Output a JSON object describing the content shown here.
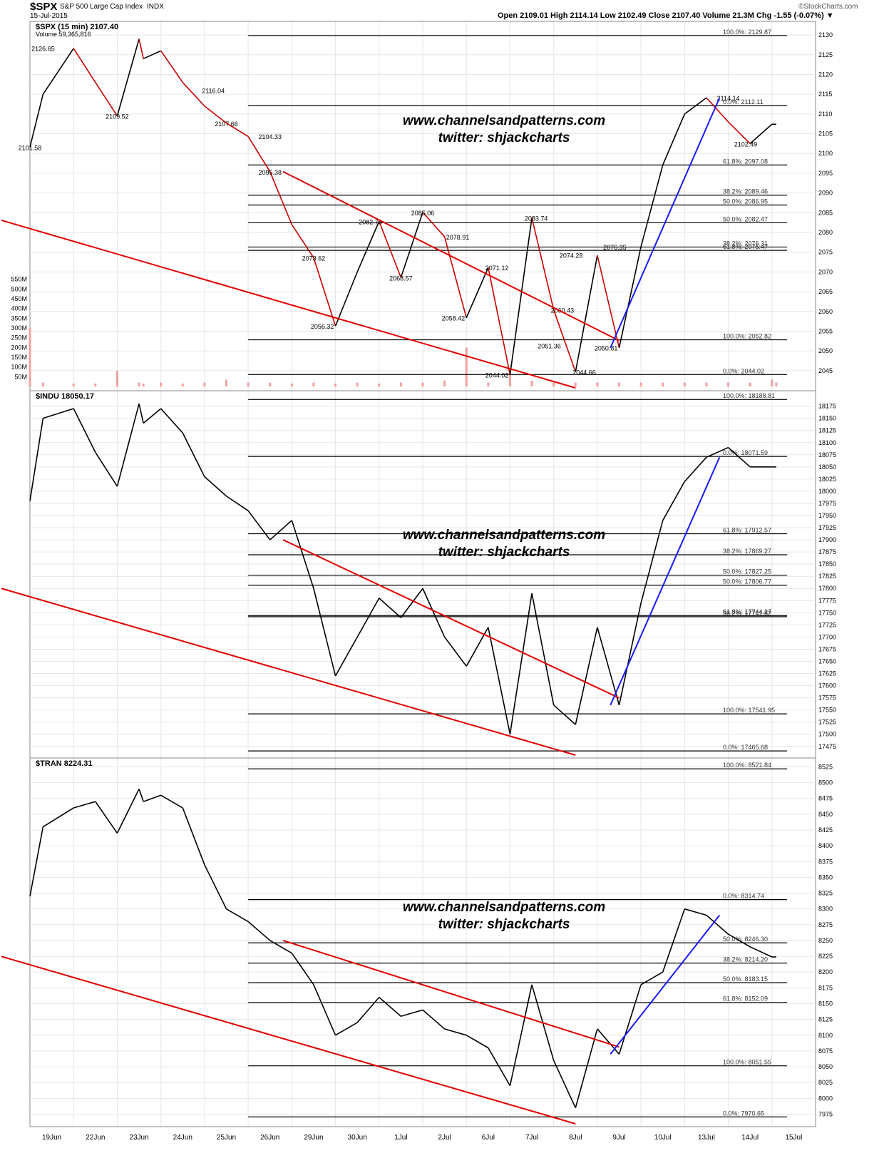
{
  "header": {
    "symbol": "$SPX",
    "name": "S&P 500 Large Cap Index",
    "exchange": "INDX",
    "date": "15-Jul-2015",
    "brand": "©StockCharts.com",
    "ohlc": "Open 2109.01   High 2114.14   Low 2102.49   Close 2107.40   Volume 21.3M   Chg -1.55 (-0.07%) ▼"
  },
  "watermark": {
    "line1": "www.channelsandpatterns.com",
    "line2": "twitter: shjackcharts"
  },
  "colors": {
    "down": "#cc0000",
    "up": "#000000",
    "trend": "#e00000",
    "fib": "#1a1aff",
    "volume": "#f0a0a0",
    "grid": "#e6e6e6"
  },
  "x_axis": {
    "labels": [
      "19Jun",
      "22Jun",
      "23Jun",
      "24Jun",
      "25Jun",
      "26Jun",
      "29Jun",
      "30Jun",
      "1Jul",
      "2Jul",
      "6Jul",
      "7Jul",
      "8Jul",
      "9Jul",
      "10Jul",
      "13Jul",
      "14Jul",
      "15Jul"
    ]
  },
  "chart_data": [
    {
      "type": "line",
      "id": "spx",
      "title": "$SPX (15 min) 2107.40",
      "subtitle": "Volume 59,365,816",
      "y_range": [
        2041,
        2132
      ],
      "y_ticks": [
        2045,
        2050,
        2055,
        2060,
        2065,
        2070,
        2075,
        2080,
        2085,
        2090,
        2095,
        2100,
        2105,
        2110,
        2115,
        2120,
        2125,
        2130
      ],
      "volume_range": [
        0,
        600
      ],
      "volume_ticks": [
        "50M",
        "100M",
        "150M",
        "200M",
        "250M",
        "300M",
        "350M",
        "400M",
        "450M",
        "500M",
        "550M"
      ],
      "series": [
        {
          "x": [
            0,
            0.3,
            1,
            1.5,
            2,
            2.5,
            2.6,
            3,
            3.5,
            4,
            4.5,
            5,
            5.5,
            6,
            6.5,
            7,
            7.5,
            8,
            8.5,
            9,
            9.5,
            10,
            10.5,
            11,
            11.5,
            12,
            12.5,
            13,
            13.5,
            14,
            14.5,
            15,
            15.5,
            16,
            16.5,
            17,
            17.1
          ],
          "y": [
            2101.6,
            2115,
            2126.6,
            2118,
            2109.5,
            2129,
            2124,
            2126,
            2118,
            2112,
            2107.7,
            2104.3,
            2095.4,
            2082,
            2073.6,
            2056.3,
            2070,
            2082.8,
            2068.6,
            2085.1,
            2078.9,
            2058.4,
            2071.1,
            2044,
            2083.7,
            2060.4,
            2044.7,
            2074.2,
            2050.8,
            2076.4,
            2097.1,
            2110,
            2114.1,
            2108,
            2102.5,
            2107.4,
            2107.4
          ]
        }
      ],
      "volume": [
        300,
        20,
        15,
        15,
        80,
        20,
        15,
        20,
        15,
        20,
        35,
        20,
        20,
        15,
        20,
        15,
        20,
        15,
        20,
        20,
        30,
        200,
        20,
        60,
        30,
        20,
        20,
        20,
        20,
        20,
        20,
        20,
        20,
        20,
        20,
        35,
        20
      ],
      "annotations": [
        {
          "x": 0,
          "y": 2101.58,
          "label": "2101.58"
        },
        {
          "x": 0.3,
          "y": 2126.65,
          "label": "2126.65"
        },
        {
          "x": 2,
          "y": 2109.52,
          "label": "2109.52"
        },
        {
          "x": 4.2,
          "y": 2116.04,
          "label": "2116.04"
        },
        {
          "x": 4.5,
          "y": 2107.66,
          "label": "2107.66"
        },
        {
          "x": 5.5,
          "y": 2104.33,
          "label": "2104.33"
        },
        {
          "x": 5.5,
          "y": 2095.38,
          "label": "2095.38"
        },
        {
          "x": 6.5,
          "y": 2073.62,
          "label": "2073.62"
        },
        {
          "x": 6.7,
          "y": 2056.32,
          "label": "2056.32"
        },
        {
          "x": 7.8,
          "y": 2082.78,
          "label": "2082.78"
        },
        {
          "x": 8.5,
          "y": 2068.57,
          "label": "2068.57"
        },
        {
          "x": 9,
          "y": 2085.06,
          "label": "2085.06"
        },
        {
          "x": 9.8,
          "y": 2078.91,
          "label": "2078.91"
        },
        {
          "x": 9.7,
          "y": 2058.42,
          "label": "2058.42"
        },
        {
          "x": 10.7,
          "y": 2071.12,
          "label": "2071.12"
        },
        {
          "x": 10.7,
          "y": 2044.02,
          "label": "2044.02"
        },
        {
          "x": 11.6,
          "y": 2083.74,
          "label": "2083.74"
        },
        {
          "x": 12.4,
          "y": 2074.28,
          "label": "2074.28"
        },
        {
          "x": 12.2,
          "y": 2060.43,
          "label": "2060.43"
        },
        {
          "x": 11.9,
          "y": 2051.36,
          "label": "2051.36"
        },
        {
          "x": 12.7,
          "y": 2044.66,
          "label": "2044.66"
        },
        {
          "x": 13.2,
          "y": 2050.81,
          "label": "2050.81"
        },
        {
          "x": 13.4,
          "y": 2076.35,
          "label": "2076.35"
        },
        {
          "x": 16.0,
          "y": 2114.14,
          "label": "2114.14"
        },
        {
          "x": 16.4,
          "y": 2102.49,
          "label": "2102.49"
        }
      ],
      "fib_levels": [
        {
          "y": 2129.87,
          "label": "100.0%: 2129.87"
        },
        {
          "y": 2112.11,
          "label": "0.0%: 2112.11"
        },
        {
          "y": 2097.08,
          "label": "61.8%: 2097.08"
        },
        {
          "y": 2089.46,
          "label": "38.2%: 2089.46"
        },
        {
          "y": 2086.95,
          "label": "50.0%: 2086.95"
        },
        {
          "y": 2082.47,
          "label": "50.0%: 2082.47"
        },
        {
          "y": 2076.31,
          "label": "38.2%: 2076.31"
        },
        {
          "y": 2075.47,
          "label": "61.8%: 2075.47"
        },
        {
          "y": 2052.82,
          "label": "100.0%: 2052.82"
        },
        {
          "y": 2044.02,
          "label": "0.0%: 2044.02"
        }
      ]
    },
    {
      "type": "line",
      "id": "indu",
      "title": "$INDU 18050.17",
      "y_range": [
        17460,
        18195
      ],
      "y_ticks": [
        17475,
        17500,
        17525,
        17550,
        17575,
        17600,
        17625,
        17650,
        17675,
        17700,
        17725,
        17750,
        17775,
        17800,
        17825,
        17850,
        17875,
        17900,
        17925,
        17950,
        17975,
        18000,
        18025,
        18050,
        18075,
        18100,
        18125,
        18150,
        18175
      ],
      "series": [
        {
          "x": [
            0,
            0.3,
            1,
            1.5,
            2,
            2.5,
            2.6,
            3,
            3.5,
            4,
            4.5,
            5,
            5.5,
            6,
            6.5,
            7,
            7.5,
            8,
            8.5,
            9,
            9.5,
            10,
            10.5,
            11,
            11.5,
            12,
            12.5,
            13,
            13.5,
            14,
            14.5,
            15,
            15.5,
            16,
            16.5,
            17,
            17.1
          ],
          "y": [
            17980,
            18150,
            18170,
            18080,
            18010,
            18180,
            18140,
            18170,
            18120,
            18030,
            17990,
            17960,
            17900,
            17940,
            17800,
            17620,
            17700,
            17780,
            17740,
            17800,
            17700,
            17640,
            17720,
            17500,
            17790,
            17560,
            17520,
            17720,
            17560,
            17770,
            17940,
            18020,
            18070,
            18090,
            18050,
            18050,
            18050
          ]
        }
      ],
      "fib_levels": [
        {
          "y": 18188.81,
          "label": "100.0%: 18188.81"
        },
        {
          "y": 18071.59,
          "label": "0.0%: 18071.59"
        },
        {
          "y": 17912.57,
          "label": "61.8%: 17912.57"
        },
        {
          "y": 17869.27,
          "label": "38.2%: 17869.27"
        },
        {
          "y": 17827.25,
          "label": "50.0%: 17827.25"
        },
        {
          "y": 17806.77,
          "label": "50.0%: 17806.77"
        },
        {
          "y": 17744.27,
          "label": "61.8%: 17744.27"
        },
        {
          "y": 17741.82,
          "label": "38.2%: 17741.82"
        },
        {
          "y": 17541.95,
          "label": "100.0%: 17541.95"
        },
        {
          "y": 17465.68,
          "label": "0.0%: 17465.68"
        }
      ]
    },
    {
      "type": "line",
      "id": "tran",
      "title": "$TRAN 8224.31",
      "y_range": [
        7962,
        8530
      ],
      "y_ticks": [
        7975,
        8000,
        8025,
        8050,
        8075,
        8100,
        8125,
        8150,
        8175,
        8200,
        8225,
        8250,
        8275,
        8300,
        8325,
        8350,
        8375,
        8400,
        8425,
        8450,
        8475,
        8500,
        8525
      ],
      "series": [
        {
          "x": [
            0,
            0.3,
            1,
            1.5,
            2,
            2.5,
            2.6,
            3,
            3.5,
            4,
            4.5,
            5,
            5.5,
            6,
            6.5,
            7,
            7.5,
            8,
            8.5,
            9,
            9.5,
            10,
            10.5,
            11,
            11.5,
            12,
            12.5,
            13,
            13.5,
            14,
            14.5,
            15,
            15.5,
            16,
            16.5,
            17,
            17.1
          ],
          "y": [
            8320,
            8430,
            8460,
            8470,
            8420,
            8490,
            8470,
            8480,
            8460,
            8370,
            8300,
            8280,
            8250,
            8230,
            8180,
            8100,
            8120,
            8160,
            8130,
            8140,
            8110,
            8100,
            8080,
            8020,
            8180,
            8060,
            7985,
            8110,
            8070,
            8180,
            8200,
            8300,
            8290,
            8260,
            8240,
            8224,
            8224
          ]
        }
      ],
      "fib_levels": [
        {
          "y": 8521.84,
          "label": "100.0%: 8521.84"
        },
        {
          "y": 8314.74,
          "label": "0.0%: 8314.74"
        },
        {
          "y": 8246.3,
          "label": "50.0%: 8246.30"
        },
        {
          "y": 8214.2,
          "label": "38.2%: 8214.20"
        },
        {
          "y": 8183.15,
          "label": "50.0%: 8183.15"
        },
        {
          "y": 8152.09,
          "label": "61.8%: 8152.09"
        },
        {
          "y": 8051.55,
          "label": "100.0%: 8051.55"
        },
        {
          "y": 7970.65,
          "label": "0.0%: 7970.65"
        }
      ]
    }
  ]
}
